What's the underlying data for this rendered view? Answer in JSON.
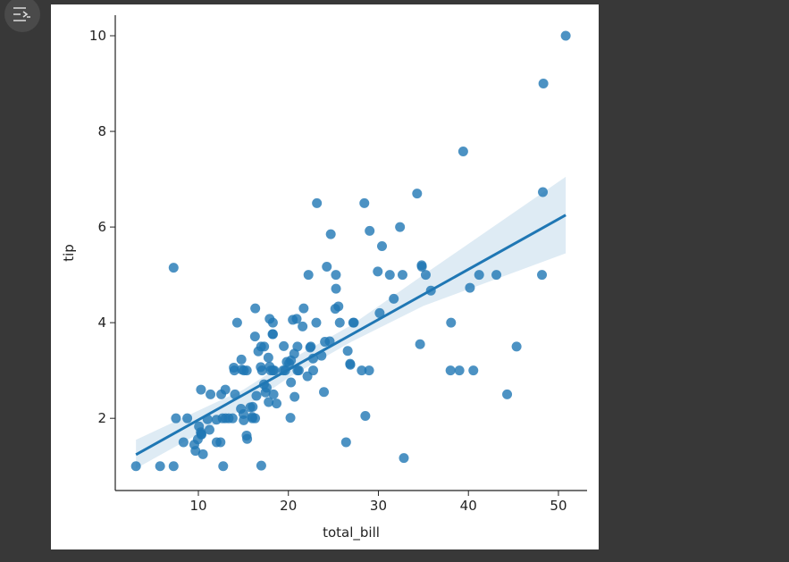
{
  "chart_data": {
    "type": "scatter",
    "x_label": "total_bill",
    "y_label": "tip",
    "color": "#1f77b4",
    "xlim": [
      0.77,
      53.18
    ],
    "ylim": [
      0.49,
      10.43
    ],
    "xticks": [
      10,
      20,
      30,
      40,
      50
    ],
    "yticks": [
      2,
      4,
      6,
      8,
      10
    ],
    "x": [
      16.99,
      10.34,
      21.01,
      23.68,
      24.59,
      25.29,
      8.77,
      26.88,
      15.04,
      14.78,
      10.27,
      35.26,
      15.42,
      18.43,
      14.83,
      21.58,
      10.33,
      16.29,
      16.97,
      20.65,
      17.92,
      20.29,
      15.77,
      39.42,
      19.82,
      17.81,
      13.37,
      12.69,
      21.7,
      19.65,
      9.55,
      18.35,
      15.06,
      20.69,
      17.78,
      24.06,
      16.31,
      16.93,
      18.69,
      31.27,
      16.04,
      17.46,
      13.94,
      9.68,
      30.4,
      18.29,
      22.23,
      32.4,
      28.55,
      18.04,
      12.54,
      10.29,
      34.81,
      9.94,
      25.56,
      19.49,
      38.01,
      26.41,
      11.24,
      48.27,
      20.29,
      13.81,
      11.02,
      18.29,
      17.59,
      20.08,
      16.45,
      3.07,
      20.23,
      15.01,
      12.02,
      17.07,
      26.86,
      25.28,
      14.73,
      10.51,
      17.92,
      27.2,
      22.76,
      17.29,
      19.44,
      16.66,
      10.07,
      32.68,
      15.98,
      34.83,
      13.03,
      18.28,
      24.71,
      21.16,
      28.97,
      22.49,
      5.75,
      16.32,
      22.75,
      40.17,
      27.28,
      12.03,
      21.01,
      12.46,
      11.35,
      15.38,
      44.3,
      22.42,
      20.92,
      15.36,
      20.49,
      25.21,
      18.24,
      14.31,
      14.0,
      7.25,
      38.07,
      23.95,
      25.71,
      17.31,
      29.93,
      50.81,
      48.33,
      7.25,
      23.17,
      28.44,
      34.3,
      48.17,
      45.35,
      32.83,
      41.19,
      43.11,
      40.55,
      39.0,
      29.03,
      24.27,
      30.14,
      23.1,
      12.76,
      7.51,
      8.35,
      14.07,
      13.0,
      28.15,
      26.59,
      16.0,
      31.71,
      34.63,
      22.12,
      35.83
    ],
    "series": [
      {
        "name": "tip",
        "color": "#1f77b4",
        "values": [
          1.01,
          1.66,
          3.5,
          3.31,
          3.61,
          4.71,
          2.0,
          3.12,
          1.96,
          3.23,
          1.71,
          5.0,
          1.57,
          3.0,
          3.02,
          3.92,
          1.67,
          3.71,
          3.5,
          3.35,
          4.08,
          2.75,
          2.23,
          7.58,
          3.18,
          2.34,
          2.0,
          2.0,
          4.3,
          3.0,
          1.45,
          2.5,
          3.0,
          2.45,
          3.27,
          3.6,
          2.0,
          3.07,
          2.31,
          5.0,
          2.24,
          2.54,
          3.06,
          1.32,
          5.6,
          3.0,
          5.0,
          6.0,
          2.05,
          3.0,
          2.5,
          2.6,
          5.2,
          1.56,
          4.34,
          3.51,
          3.0,
          1.5,
          1.76,
          6.73,
          3.21,
          2.0,
          1.98,
          3.76,
          2.64,
          3.15,
          2.47,
          1.0,
          2.01,
          2.09,
          1.97,
          3.0,
          3.14,
          5.0,
          2.2,
          1.25,
          3.08,
          4.0,
          3.0,
          2.71,
          3.0,
          3.4,
          1.83,
          5.0,
          2.03,
          5.17,
          2.0,
          4.0,
          5.85,
          3.0,
          3.0,
          3.5,
          1.0,
          4.3,
          3.25,
          4.73,
          4.0,
          1.5,
          3.0,
          1.5,
          2.5,
          3.0,
          2.5,
          3.48,
          4.08,
          1.64,
          4.06,
          4.29,
          3.76,
          4.0,
          3.0,
          1.0,
          4.0,
          2.55,
          4.0,
          3.5,
          5.07,
          10.0,
          9.0,
          5.15,
          6.5,
          6.5,
          6.7,
          5.0,
          3.5,
          1.17,
          5.0,
          5.0,
          3.0,
          3.0,
          5.92,
          5.17,
          4.2,
          4.0,
          1.0,
          2.0,
          1.5,
          2.5,
          2.6,
          3.0,
          3.41,
          2.0,
          4.5,
          3.55,
          2.88,
          4.67
        ]
      }
    ],
    "fit": {
      "x": [
        3.07,
        50.81
      ],
      "y": [
        1.24,
        6.25
      ]
    },
    "ci": {
      "x": [
        3.07,
        15,
        20,
        27,
        35,
        50.81
      ],
      "lower": [
        0.95,
        2.2,
        2.85,
        3.6,
        4.35,
        5.45
      ],
      "upper": [
        1.55,
        2.6,
        3.2,
        3.95,
        5.0,
        7.05
      ]
    }
  }
}
